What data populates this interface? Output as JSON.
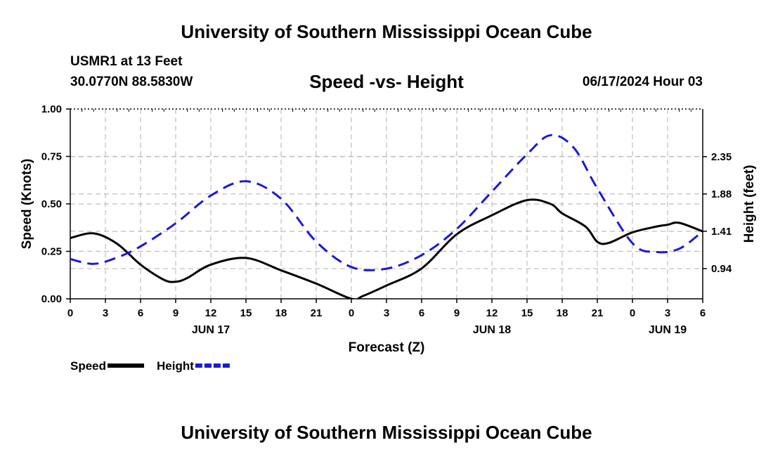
{
  "header": {
    "title": "University of Southern Mississippi Ocean Cube",
    "station": "USMR1 at 13 Feet",
    "coordinates": "30.0770N  88.5830W",
    "subtitle": "Speed -vs- Height",
    "datetime": "06/17/2024 Hour 03",
    "footer_title": "University of Southern Mississippi Ocean Cube"
  },
  "chart_data": {
    "type": "line",
    "title": "Speed -vs- Height",
    "xlabel": "Forecast (Z)",
    "ylabel": "Speed (Knots)",
    "y2label": "Height (feet)",
    "x_unit": "hours from 06/17/2024 00Z",
    "xlim": [
      0,
      54
    ],
    "ylim": [
      0,
      1.0
    ],
    "y2lim": [
      0.56,
      2.95
    ],
    "x_ticks": [
      0,
      3,
      6,
      9,
      12,
      15,
      18,
      21,
      24,
      27,
      30,
      33,
      36,
      39,
      42,
      45,
      48,
      51,
      54
    ],
    "x_tick_labels": [
      "0",
      "3",
      "6",
      "9",
      "12",
      "15",
      "18",
      "21",
      "0",
      "3",
      "6",
      "9",
      "12",
      "15",
      "18",
      "21",
      "0",
      "3",
      "6"
    ],
    "day_labels": [
      {
        "x": 12,
        "label": "JUN 17"
      },
      {
        "x": 36,
        "label": "JUN 18"
      },
      {
        "x": 51,
        "label": "JUN 19"
      }
    ],
    "y_ticks": [
      0.0,
      0.25,
      0.5,
      0.75,
      1.0
    ],
    "y_tick_labels": [
      "0.00",
      "0.25",
      "0.50",
      "0.75",
      "1.00"
    ],
    "y2_ticks": [
      0.94,
      1.41,
      1.88,
      2.35
    ],
    "y2_tick_labels": [
      "0.94",
      "1.41",
      "1.88",
      "2.35"
    ],
    "grid": true,
    "legend_position": "bottom-left",
    "series": [
      {
        "name": "Speed",
        "axis": "left",
        "color": "#000000",
        "style": "solid",
        "x": [
          0,
          2,
          4,
          6,
          8,
          9,
          10,
          12,
          15,
          18,
          21,
          24,
          25,
          27,
          30,
          33,
          36,
          39,
          41,
          42,
          44,
          45,
          46,
          48,
          50,
          51,
          52,
          54
        ],
        "values": [
          0.32,
          0.345,
          0.29,
          0.18,
          0.1,
          0.09,
          0.11,
          0.18,
          0.215,
          0.15,
          0.08,
          0.0,
          0.015,
          0.07,
          0.16,
          0.34,
          0.44,
          0.52,
          0.5,
          0.45,
          0.38,
          0.3,
          0.295,
          0.35,
          0.38,
          0.39,
          0.4,
          0.355
        ]
      },
      {
        "name": "Height",
        "axis": "right",
        "color": "#1a1ad6",
        "style": "dashed",
        "x": [
          0,
          2,
          4,
          6,
          9,
          12,
          15,
          18,
          21,
          24,
          27,
          30,
          33,
          36,
          39,
          41,
          43,
          45,
          48,
          50,
          52,
          54
        ],
        "values": [
          1.06,
          1.0,
          1.08,
          1.22,
          1.51,
          1.86,
          2.04,
          1.82,
          1.28,
          0.96,
          0.94,
          1.11,
          1.44,
          1.91,
          2.38,
          2.62,
          2.46,
          1.95,
          1.26,
          1.15,
          1.19,
          1.41
        ]
      }
    ]
  }
}
